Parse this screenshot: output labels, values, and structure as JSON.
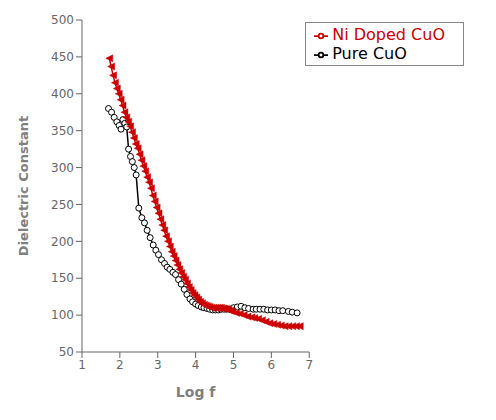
{
  "chart_data": {
    "type": "line",
    "xlabel": "Log f",
    "ylabel": "Dielectric Constant",
    "xlim": [
      1,
      7
    ],
    "ylim": [
      50,
      500
    ],
    "xticks": [
      1,
      2,
      3,
      4,
      5,
      6,
      7
    ],
    "yticks": [
      50,
      100,
      150,
      200,
      250,
      300,
      350,
      400,
      450,
      500
    ],
    "grid": false,
    "legend": "upper right",
    "series": [
      {
        "name": "Pure CuO",
        "color": "#000000",
        "marker": "circle",
        "x": [
          1.7,
          1.78,
          1.85,
          1.92,
          1.98,
          2.03,
          2.08,
          2.13,
          2.18,
          2.23,
          2.28,
          2.33,
          2.38,
          2.43,
          2.5,
          2.58,
          2.65,
          2.72,
          2.8,
          2.88,
          2.95,
          3.02,
          3.1,
          3.18,
          3.25,
          3.32,
          3.4,
          3.47,
          3.55,
          3.62,
          3.7,
          3.77,
          3.85,
          3.92,
          4.0,
          4.07,
          4.15,
          4.22,
          4.3,
          4.37,
          4.45,
          4.52,
          4.6,
          4.67,
          4.75,
          4.82,
          4.9,
          5.0,
          5.1,
          5.2,
          5.3,
          5.4,
          5.52,
          5.6,
          5.7,
          5.8,
          5.9,
          6.0,
          6.1,
          6.2,
          6.3,
          6.45,
          6.55,
          6.68
        ],
        "values": [
          380,
          375,
          368,
          362,
          357,
          352,
          365,
          360,
          355,
          325,
          315,
          308,
          300,
          290,
          245,
          232,
          225,
          215,
          205,
          195,
          188,
          182,
          175,
          170,
          165,
          162,
          158,
          155,
          148,
          142,
          135,
          128,
          122,
          118,
          115,
          113,
          111,
          110,
          109,
          108,
          107,
          107,
          107,
          108,
          108,
          108,
          108,
          110,
          111,
          112,
          110,
          109,
          108,
          108,
          108,
          108,
          107,
          107,
          107,
          106,
          106,
          105,
          104,
          103
        ]
      },
      {
        "name": "Ni Doped CuO",
        "color": "#cc0000",
        "marker": "triangle-left",
        "x": [
          1.72,
          1.77,
          1.82,
          1.87,
          1.92,
          1.97,
          2.02,
          2.07,
          2.12,
          2.17,
          2.22,
          2.27,
          2.32,
          2.37,
          2.42,
          2.47,
          2.52,
          2.57,
          2.62,
          2.67,
          2.72,
          2.77,
          2.82,
          2.87,
          2.92,
          2.97,
          3.02,
          3.07,
          3.12,
          3.17,
          3.22,
          3.27,
          3.32,
          3.37,
          3.42,
          3.47,
          3.52,
          3.57,
          3.62,
          3.67,
          3.72,
          3.77,
          3.82,
          3.87,
          3.92,
          3.97,
          4.02,
          4.07,
          4.12,
          4.17,
          4.22,
          4.27,
          4.32,
          4.37,
          4.42,
          4.47,
          4.52,
          4.57,
          4.62,
          4.67,
          4.72,
          4.77,
          4.82,
          4.87,
          4.92,
          4.97,
          5.07,
          5.17,
          5.27,
          5.37,
          5.47,
          5.55,
          5.65,
          5.75,
          5.85,
          5.95,
          6.05,
          6.15,
          6.25,
          6.35,
          6.45,
          6.55,
          6.65,
          6.75
        ],
        "values": [
          448,
          437,
          425,
          415,
          407,
          400,
          392,
          384,
          375,
          368,
          362,
          356,
          348,
          340,
          332,
          326,
          318,
          310,
          302,
          295,
          287,
          280,
          272,
          262,
          254,
          246,
          238,
          230,
          222,
          215,
          207,
          200,
          193,
          186,
          180,
          174,
          168,
          162,
          157,
          152,
          148,
          143,
          138,
          134,
          130,
          127,
          124,
          121,
          118,
          116,
          114,
          113,
          112,
          111,
          110,
          110,
          110,
          110,
          110,
          110,
          109,
          109,
          108,
          107,
          106,
          105,
          103,
          102,
          100,
          98,
          97,
          96,
          95,
          93,
          91,
          89,
          88,
          87,
          86,
          85,
          85,
          85,
          85,
          85
        ]
      }
    ]
  }
}
